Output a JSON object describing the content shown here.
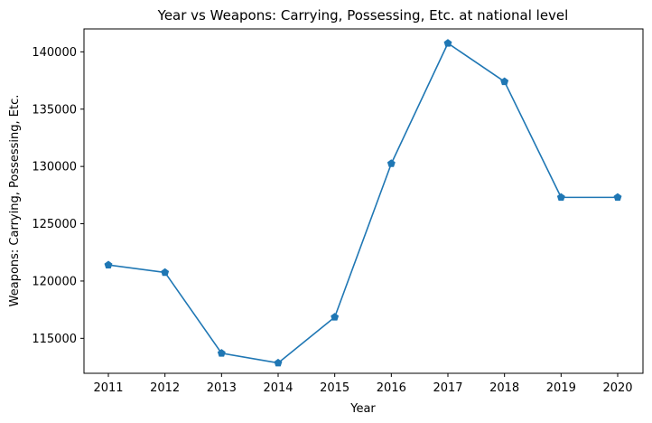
{
  "chart_data": {
    "type": "line",
    "title": "Year vs Weapons: Carrying, Possessing, Etc. at national level",
    "xlabel": "Year",
    "ylabel": "Weapons: Carrying, Possessing, Etc.",
    "x": [
      "2011",
      "2012",
      "2013",
      "2014",
      "2015",
      "2016",
      "2017",
      "2018",
      "2019",
      "2020"
    ],
    "series": [
      {
        "values": [
          121400,
          120750,
          113700,
          112850,
          116850,
          130250,
          140750,
          137400,
          127300,
          127300
        ]
      }
    ],
    "y_ticks": [
      "115000",
      "120000",
      "125000",
      "130000",
      "135000",
      "140000"
    ],
    "ylim": [
      111950,
      142000
    ],
    "marker": "pentagon",
    "line_color": "#1f77b4",
    "grid": false
  }
}
